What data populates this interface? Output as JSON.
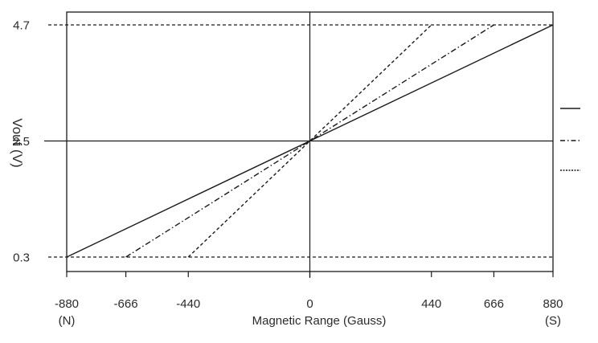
{
  "chart_data": {
    "type": "line",
    "title": "",
    "xlabel": "Magnetic Range (Gauss)",
    "ylabel": "Vout (V)",
    "xlim": [
      -880,
      880
    ],
    "ylim": [
      0,
      5.2
    ],
    "x_ticks": [
      {
        "value": -880,
        "label": "-880",
        "sublabel": "(N)"
      },
      {
        "value": -666,
        "label": "-666",
        "sublabel": ""
      },
      {
        "value": -440,
        "label": "-440",
        "sublabel": ""
      },
      {
        "value": 0,
        "label": "0",
        "sublabel": ""
      },
      {
        "value": 440,
        "label": "440",
        "sublabel": ""
      },
      {
        "value": 666,
        "label": "666",
        "sublabel": ""
      },
      {
        "value": 880,
        "label": "880",
        "sublabel": "(S)"
      }
    ],
    "y_ticks": [
      {
        "value": 0.3,
        "label": "0.3"
      },
      {
        "value": 2.5,
        "label": "2.5"
      },
      {
        "value": 4.7,
        "label": "4.7"
      }
    ],
    "reference_lines": [
      {
        "axis": "y",
        "value": 4.7,
        "style": "dashed"
      },
      {
        "axis": "y",
        "value": 2.5,
        "style": "solid"
      },
      {
        "axis": "y",
        "value": 0.3,
        "style": "dashed"
      },
      {
        "axis": "x",
        "value": 0,
        "style": "solid"
      }
    ],
    "series": [
      {
        "style": "solid",
        "x": [
          -880,
          880
        ],
        "y": [
          0.3,
          4.7
        ]
      },
      {
        "style": "dashdot",
        "x": [
          -666,
          666
        ],
        "y": [
          0.3,
          4.7
        ]
      },
      {
        "style": "dashed",
        "x": [
          -440,
          440
        ],
        "y": [
          0.3,
          4.7
        ]
      }
    ],
    "legend": {
      "position": "right",
      "entries": [
        {
          "style": "solid",
          "label": ""
        },
        {
          "style": "dashdot",
          "label": ""
        },
        {
          "style": "dashed",
          "label": ""
        }
      ]
    },
    "grid": false,
    "line_color": "#1a1a1a"
  }
}
